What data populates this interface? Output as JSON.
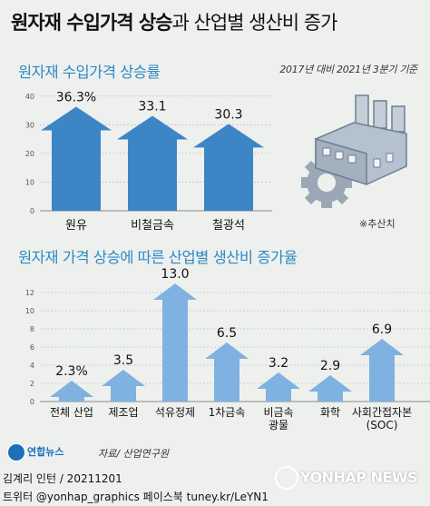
{
  "header": {
    "title_bold": "원자재 수입가격 상승",
    "title_rest": "과 산업별 생산비 증가"
  },
  "colors": {
    "arrow": "#3d86c6",
    "arrow_light": "#7fb2e0",
    "accent": "#2d8ac4",
    "factory": "#aab7c4",
    "gear": "#9aa8b6"
  },
  "chart_data": [
    {
      "type": "bar",
      "title": "원자재 수입가격 상승률",
      "subtitle": "2017년 대비 2021년 3분기 기준",
      "categories": [
        "원유",
        "비철금속",
        "철광석"
      ],
      "values": [
        36.3,
        33.1,
        30.3
      ],
      "value_labels": [
        "36.3%",
        "33.1",
        "30.3"
      ],
      "yticks": [
        0,
        10,
        20,
        30,
        40
      ],
      "ylim": [
        0,
        45
      ],
      "grid": true
    },
    {
      "type": "bar",
      "title": "원자재 가격 상승에 따른 산업별 생산비 증가율",
      "note": "※추산치",
      "categories": [
        "전체 산업",
        "제조업",
        "석유정제",
        "1차금속",
        "비금속광물",
        "화학",
        "사회간접자본(SOC)"
      ],
      "category_lines": [
        [
          "전체 산업"
        ],
        [
          "제조업"
        ],
        [
          "석유정제"
        ],
        [
          "1차금속"
        ],
        [
          "비금속",
          "광물"
        ],
        [
          "화학"
        ],
        [
          "사회간접자본",
          "(SOC)"
        ]
      ],
      "values": [
        2.3,
        3.5,
        13.0,
        6.5,
        3.2,
        2.9,
        6.9
      ],
      "value_labels": [
        "2.3%",
        "3.5",
        "13.0",
        "6.5",
        "3.2",
        "2.9",
        "6.9"
      ],
      "yticks": [
        0,
        2,
        4,
        6,
        8,
        10,
        12
      ],
      "ylim": [
        0,
        14
      ],
      "grid": true
    }
  ],
  "footer": {
    "logo": "연합뉴스",
    "source": "자료/ 산업연구원",
    "credit1": "김계리 인턴 / 20211201",
    "credit2": "트위터 @yonhap_graphics  페이스북 tuney.kr/LeYN1",
    "watermark": "YONHAP NEWS"
  }
}
